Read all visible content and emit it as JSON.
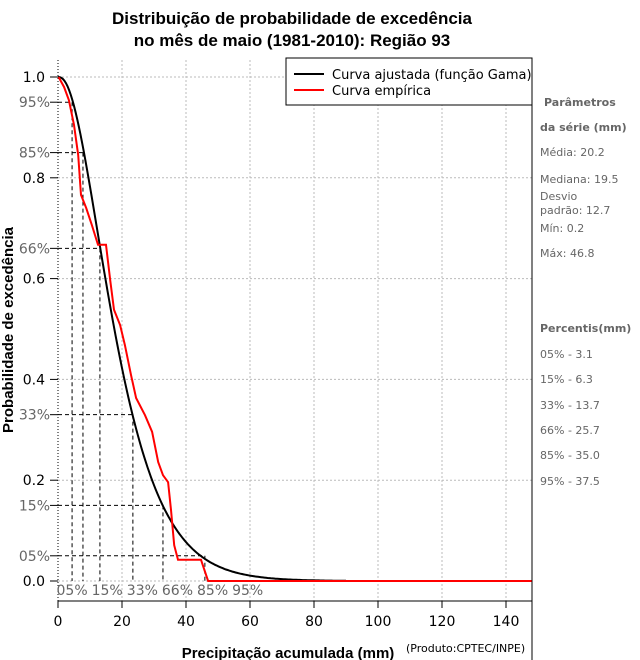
{
  "chart_data": {
    "type": "line",
    "title": [
      "Distribuição de probabilidade de excedência",
      "no mês de maio (1981-2010): Região 93"
    ],
    "xlabel": "Precipitação acumulada (mm)",
    "xlabel_note": "(Produto:CPTEC/INPE)",
    "ylabel": "Probabilidade de excedência",
    "xlim": [
      0,
      148
    ],
    "ylim": [
      0,
      1
    ],
    "x_ticks": [
      0,
      20,
      40,
      60,
      80,
      100,
      120,
      140
    ],
    "y_ticks": [
      {
        "value": 0.0,
        "label": "0.0"
      },
      {
        "value": 0.2,
        "label": "0.2"
      },
      {
        "value": 0.4,
        "label": "0.4"
      },
      {
        "value": 0.6,
        "label": "0.6"
      },
      {
        "value": 0.8,
        "label": "0.8"
      },
      {
        "value": 1.0,
        "label": "1.0"
      }
    ],
    "grid": true,
    "legend_position": "top-right",
    "series": [
      {
        "name": "Curva ajustada (função Gama)",
        "color": "#000000",
        "kind": "gamma-fit",
        "mean": 20.2,
        "sd": 12.7,
        "x_max": 90
      },
      {
        "name": "Curva empírica",
        "color": "#ff0000",
        "x": [
          0.2,
          1.9,
          3.4,
          5.0,
          6.3,
          7.2,
          8.8,
          10.6,
          12.5,
          15.0,
          16.3,
          17.5,
          19.4,
          20.9,
          22.8,
          24.4,
          27.2,
          29.4,
          31.3,
          32.8,
          34.4,
          35.3,
          36.3,
          37.5,
          44.7,
          46.9,
          148
        ],
        "y": [
          1.0,
          0.98,
          0.954,
          0.905,
          0.845,
          0.766,
          0.74,
          0.706,
          0.667,
          0.667,
          0.597,
          0.538,
          0.508,
          0.468,
          0.409,
          0.363,
          0.329,
          0.296,
          0.236,
          0.21,
          0.196,
          0.141,
          0.071,
          0.042,
          0.042,
          0.0,
          0.0
        ]
      }
    ],
    "percentile_markers": [
      {
        "label": "95%",
        "prob": 0.95,
        "x": 4.4,
        "xlabel": "05%"
      },
      {
        "label": "85%",
        "prob": 0.85,
        "x": 7.8,
        "xlabel": "15%"
      },
      {
        "label": "66%",
        "prob": 0.66,
        "x": 13.1,
        "xlabel": "33%"
      },
      {
        "label": "33%",
        "prob": 0.33,
        "x": 23.4,
        "xlabel": "66%"
      },
      {
        "label": "15%",
        "prob": 0.15,
        "x": 32.8,
        "xlabel": "85%"
      },
      {
        "label": "05%",
        "prob": 0.05,
        "x": 45.9,
        "xlabel": "95%"
      }
    ]
  },
  "params": {
    "title1": "Parâmetros",
    "title2": "da série (mm)",
    "media": "Média: 20.2",
    "mediana": "Mediana: 19.5",
    "desvio1": "Desvio",
    "desvio2": "padrão: 12.7",
    "min": "Mín: 0.2",
    "max": "Máx: 46.8"
  },
  "percentis": {
    "title": "Percentis(mm)",
    "items": [
      "05% - 3.1",
      "15% - 6.3",
      "33% - 13.7",
      "66% - 25.7",
      "85% - 35.0",
      "95% - 37.5"
    ]
  }
}
